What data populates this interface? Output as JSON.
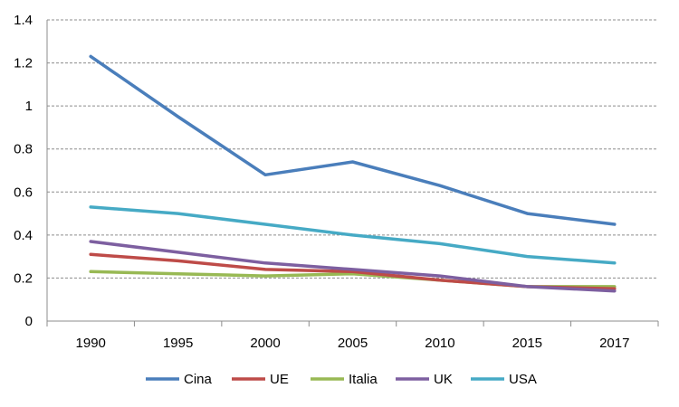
{
  "chart_data": {
    "type": "line",
    "x": [
      "1990",
      "1995",
      "2000",
      "2005",
      "2010",
      "2015",
      "2017"
    ],
    "ylim": [
      0,
      1.4
    ],
    "yticks": [
      "0",
      "0.2",
      "0.4",
      "0.6",
      "0.8",
      "1",
      "1.2",
      "1.4"
    ],
    "grid": "horizontal dashed",
    "legend_position": "bottom",
    "series": [
      {
        "name": "Cina",
        "color": "#4a7ebb",
        "values": [
          1.23,
          0.95,
          0.68,
          0.74,
          0.63,
          0.5,
          0.45
        ]
      },
      {
        "name": "UE",
        "color": "#be4b48",
        "values": [
          0.31,
          0.28,
          0.24,
          0.23,
          0.19,
          0.16,
          0.15
        ]
      },
      {
        "name": "Italia",
        "color": "#98b954",
        "values": [
          0.23,
          0.22,
          0.21,
          0.22,
          0.19,
          0.16,
          0.16
        ]
      },
      {
        "name": "UK",
        "color": "#7d5fa0",
        "values": [
          0.37,
          0.32,
          0.27,
          0.24,
          0.21,
          0.16,
          0.14
        ]
      },
      {
        "name": "USA",
        "color": "#46aac5",
        "values": [
          0.53,
          0.5,
          0.45,
          0.4,
          0.36,
          0.3,
          0.27
        ]
      }
    ]
  }
}
